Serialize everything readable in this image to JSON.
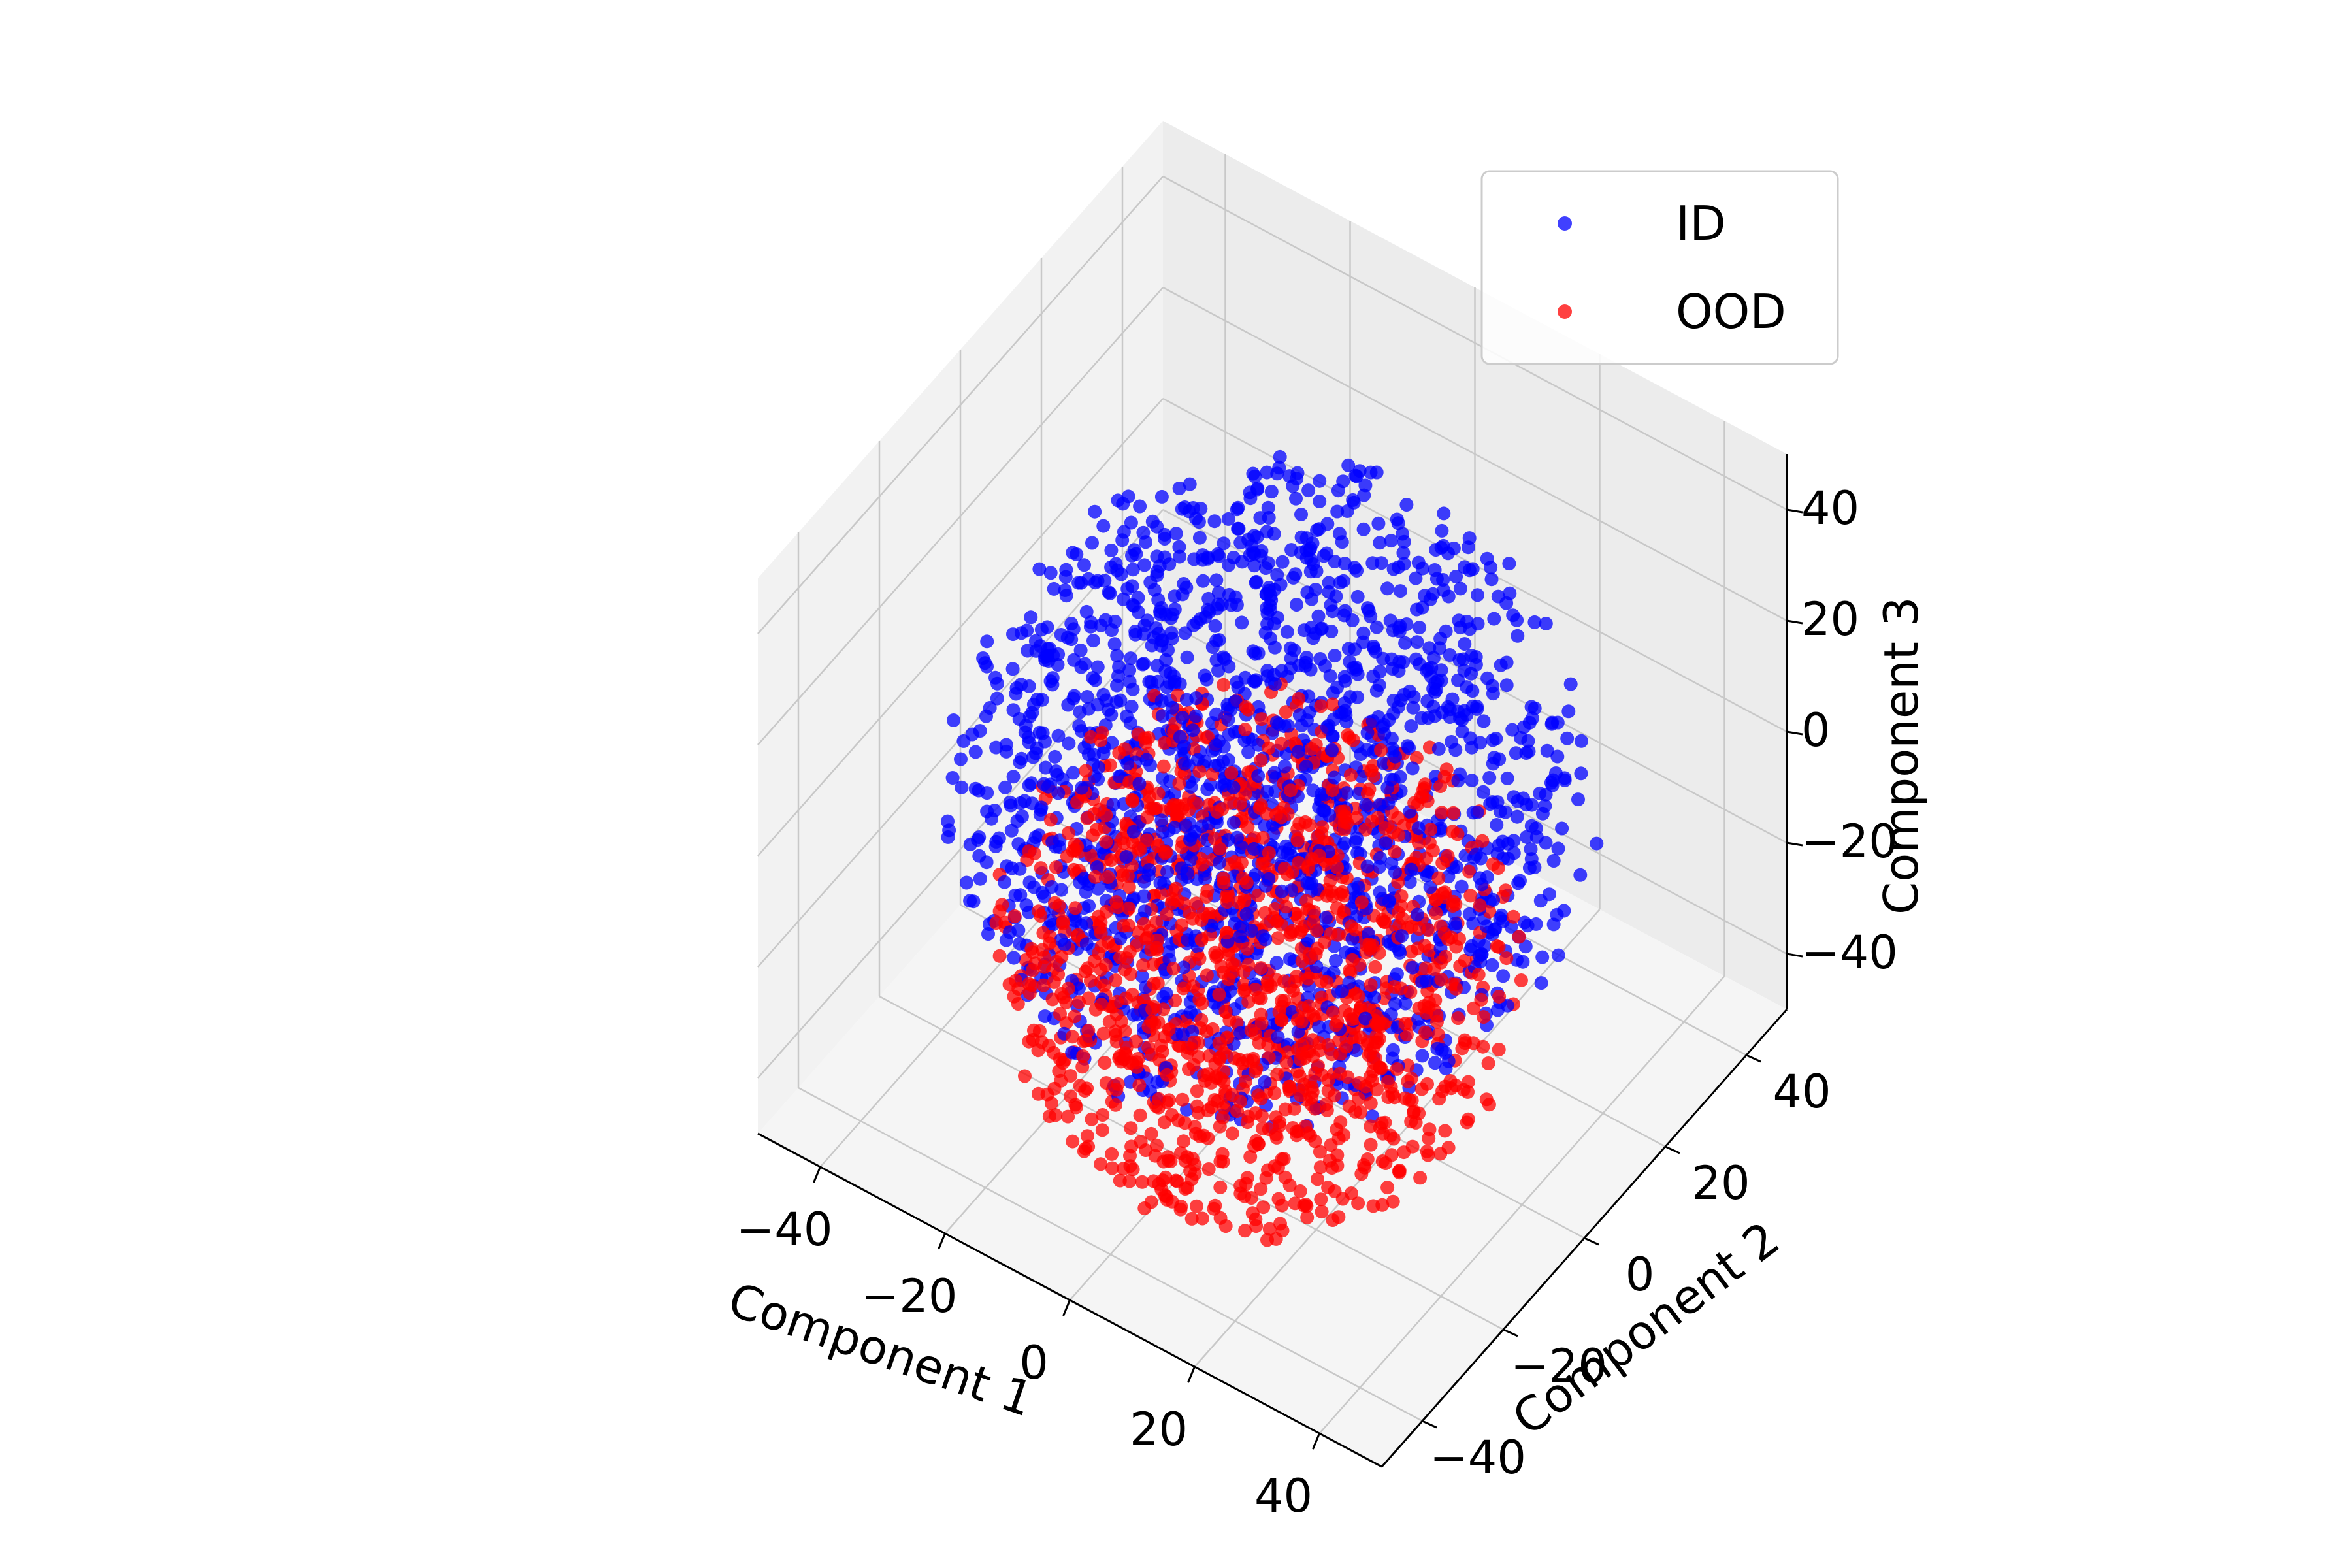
{
  "chart_data": {
    "type": "scatter",
    "projection": "3d",
    "xlabel": "Component 1",
    "ylabel": "Component 2",
    "zlabel": "Component 3",
    "xlim": [
      -50,
      50
    ],
    "ylim": [
      -50,
      50
    ],
    "zlim": [
      -50,
      50
    ],
    "xticks": [
      "−40",
      "−20",
      "0",
      "20",
      "40"
    ],
    "yticks": [
      "−40",
      "−20",
      "0",
      "20",
      "40"
    ],
    "zticks": [
      "−40",
      "−20",
      "0",
      "20",
      "40"
    ],
    "grid": true,
    "legend_position": "top-right",
    "series": [
      {
        "name": "ID",
        "color": "#0000ff",
        "points_approx": 1800,
        "distribution": "spherical cloud, radius ~45, occupying the left/back region"
      },
      {
        "name": "OOD",
        "color": "#ff0000",
        "points_approx": 1400,
        "distribution": "spherical cloud, radius ~35, centered front-right of ID"
      }
    ]
  }
}
